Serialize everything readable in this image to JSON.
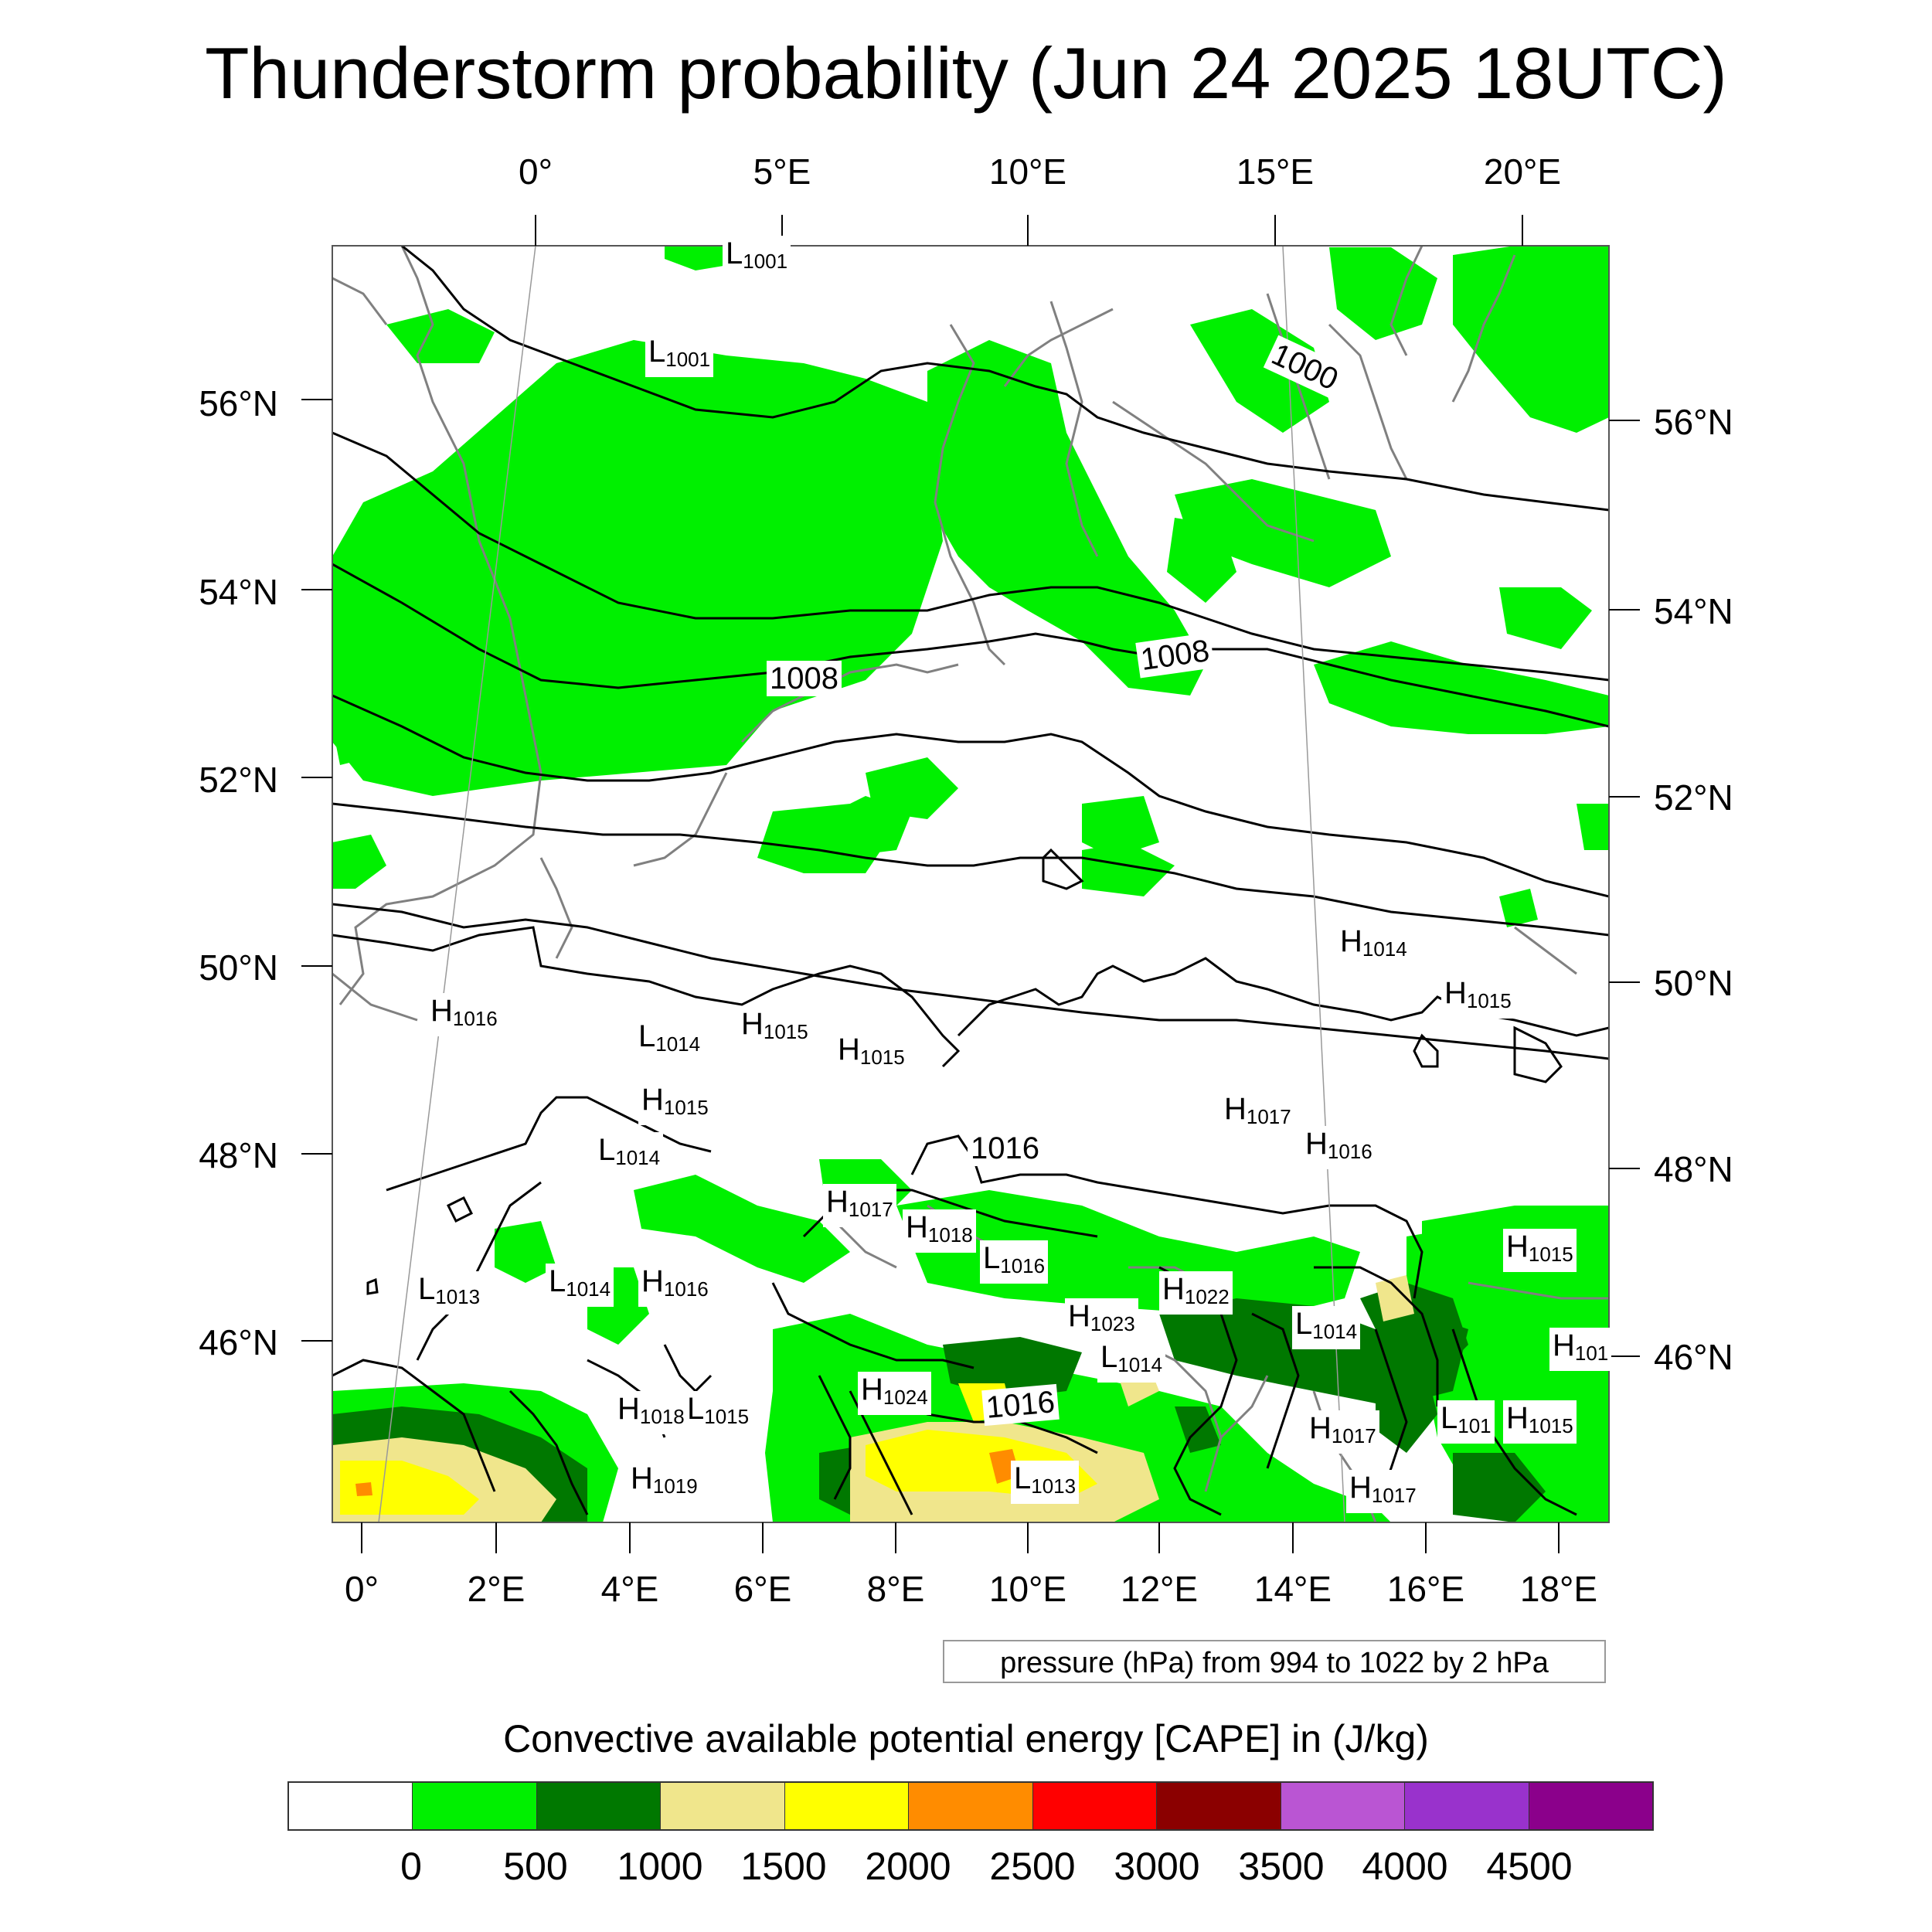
{
  "title": "Thunderstorm probability (Jun 24 2025 18UTC)",
  "top_lon_labels": [
    "0°",
    "5°E",
    "10°E",
    "15°E",
    "20°E"
  ],
  "bottom_lon_labels": [
    "0°",
    "2°E",
    "4°E",
    "6°E",
    "8°E",
    "10°E",
    "12°E",
    "14°E",
    "16°E",
    "18°E"
  ],
  "left_lat_labels": [
    "56°N",
    "54°N",
    "52°N",
    "50°N",
    "48°N",
    "46°N"
  ],
  "right_lat_labels": [
    "56°N",
    "54°N",
    "52°N",
    "50°N",
    "48°N",
    "46°N"
  ],
  "pressure_systems": [
    {
      "type": "L",
      "value": "1001"
    },
    {
      "type": "L",
      "value": "1001"
    },
    {
      "type": "H",
      "value": "1014"
    },
    {
      "type": "H",
      "value": "1015"
    },
    {
      "type": "H",
      "value": "1016"
    },
    {
      "type": "L",
      "value": "1014"
    },
    {
      "type": "H",
      "value": "1015"
    },
    {
      "type": "H",
      "value": "1015"
    },
    {
      "type": "H",
      "value": "1015"
    },
    {
      "type": "L",
      "value": "1014"
    },
    {
      "type": "H",
      "value": "1017"
    },
    {
      "type": "H",
      "value": "1016"
    },
    {
      "type": "H",
      "value": "1017"
    },
    {
      "type": "H",
      "value": "1018"
    },
    {
      "type": "L",
      "value": "1016"
    },
    {
      "type": "H",
      "value": "1015"
    },
    {
      "type": "L",
      "value": "1013"
    },
    {
      "type": "L",
      "value": "1014"
    },
    {
      "type": "H",
      "value": "1016"
    },
    {
      "type": "H",
      "value": "1022"
    },
    {
      "type": "H",
      "value": "1023"
    },
    {
      "type": "L",
      "value": "1014"
    },
    {
      "type": "L",
      "value": "1014"
    },
    {
      "type": "H",
      "value": "101"
    },
    {
      "type": "H",
      "value": "1018"
    },
    {
      "type": "L",
      "value": "1015"
    },
    {
      "type": "H",
      "value": "1024"
    },
    {
      "type": "H",
      "value": "1017"
    },
    {
      "type": "L",
      "value": "101"
    },
    {
      "type": "H",
      "value": "1015"
    },
    {
      "type": "H",
      "value": "1019"
    },
    {
      "type": "L",
      "value": "1013"
    },
    {
      "type": "H",
      "value": "1017"
    }
  ],
  "isobar_labels": [
    "1000",
    "1008",
    "1008",
    "1016",
    "1016"
  ],
  "info_text": "pressure (hPa) from 994 to 1022 by 2 hPa",
  "colorbar": {
    "title": "Convective available potential energy [CAPE] in (J/kg)",
    "colors": [
      "#ffffff",
      "#00f000",
      "#007800",
      "#f0e68c",
      "#ffff00",
      "#ff8c00",
      "#ff0000",
      "#8b0000",
      "#ba55d3",
      "#9932cc",
      "#8b008b"
    ],
    "ticks": [
      "0",
      "500",
      "1000",
      "1500",
      "2000",
      "2500",
      "3000",
      "3500",
      "4000",
      "4500"
    ]
  },
  "colors": {
    "cape_0_500": "#00f000",
    "cape_500_1000": "#007800",
    "cape_1000_1500": "#f0e68c",
    "cape_1500_2000": "#ffff00",
    "cape_2000_2500": "#ff8c00",
    "isobar": "#000000",
    "coastline": "#808080"
  }
}
